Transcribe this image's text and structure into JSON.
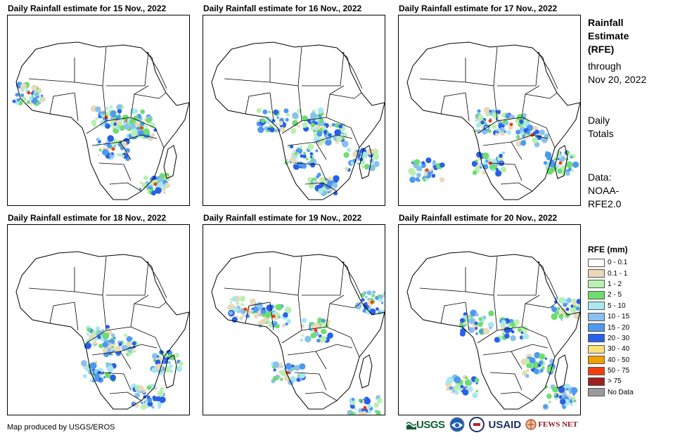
{
  "panels": [
    {
      "title": "Daily Rainfall estimate for 15 Nov., 2022"
    },
    {
      "title": "Daily Rainfall estimate for 16 Nov., 2022"
    },
    {
      "title": "Daily Rainfall estimate for 17 Nov., 2022"
    },
    {
      "title": "Daily Rainfall estimate for 18 Nov., 2022"
    },
    {
      "title": "Daily Rainfall estimate for 19 Nov., 2022"
    },
    {
      "title": "Daily Rainfall estimate for 20 Nov., 2022"
    }
  ],
  "sidebar": {
    "title_line1": "Rainfall",
    "title_line2": "Estimate",
    "title_line3": "(RFE)",
    "through": "through",
    "date": "Nov 20, 2022",
    "daily": "Daily",
    "totals": "Totals",
    "data_label": "Data:",
    "data_src1": "NOAA-",
    "data_src2": "RFE2.0"
  },
  "legend": {
    "title": "RFE (mm)",
    "items": [
      {
        "label": "0 - 0.1",
        "color": "#ffffff"
      },
      {
        "label": "0.1 - 1",
        "color": "#e9d9b8"
      },
      {
        "label": "1 - 2",
        "color": "#b8f0b0"
      },
      {
        "label": "2 - 5",
        "color": "#6fdc6f"
      },
      {
        "label": "5 - 10",
        "color": "#a8e8f0"
      },
      {
        "label": "10 - 15",
        "color": "#88c0f0"
      },
      {
        "label": "15 - 20",
        "color": "#4f98f0"
      },
      {
        "label": "20 - 30",
        "color": "#2860e8"
      },
      {
        "label": "30 - 40",
        "color": "#f8e07a"
      },
      {
        "label": "40 - 50",
        "color": "#f0a000"
      },
      {
        "label": "50 - 75",
        "color": "#f04010"
      },
      {
        "label": "> 75",
        "color": "#a02020"
      },
      {
        "label": "No Data",
        "color": "#9a9a9a"
      }
    ]
  },
  "footer": {
    "credit": "Map produced by USGS/EROS",
    "logo_usgs": "USGS",
    "logo_usaid": "USAID",
    "logo_fews": "FEWS NET"
  }
}
